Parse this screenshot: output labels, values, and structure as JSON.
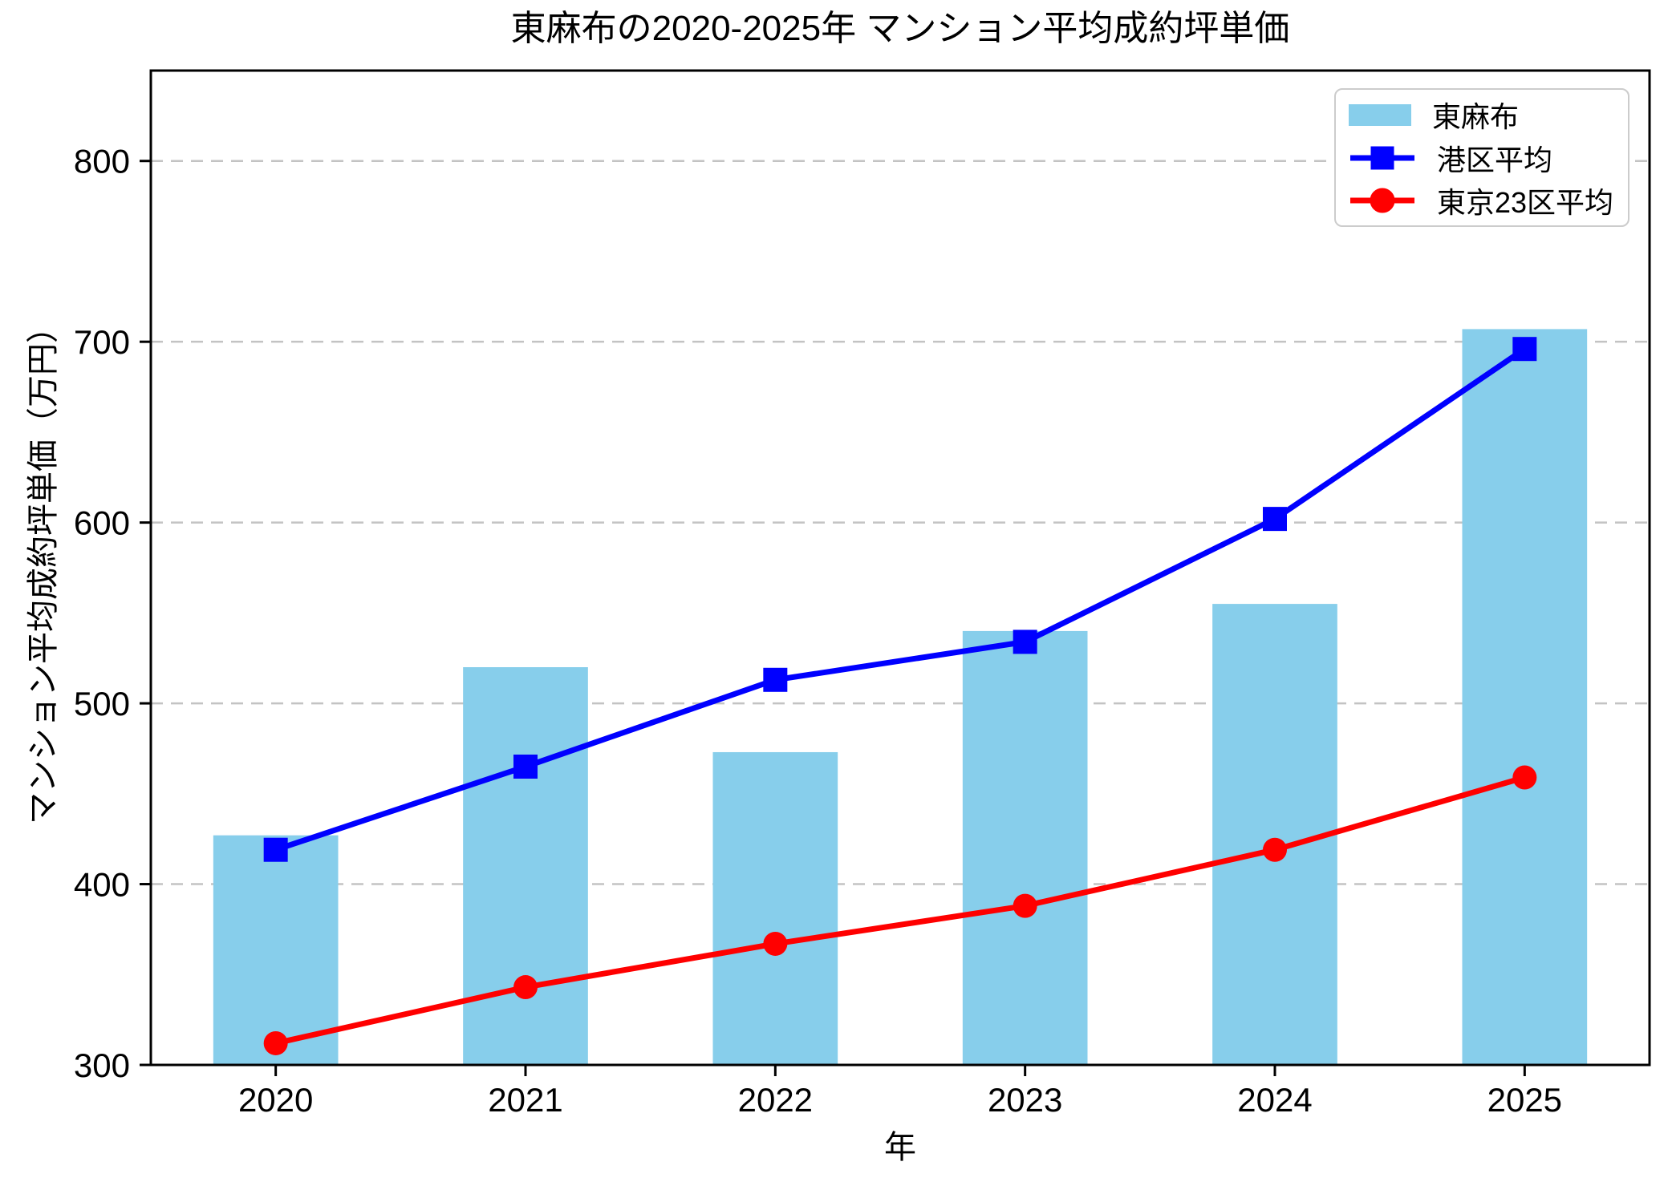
{
  "title": "東麻布の2020-2025年 マンション平均成約坪単価",
  "axes": {
    "xlabel": "年",
    "ylabel": "マンション平均成約坪単価（万円）",
    "yticks": [
      300,
      400,
      500,
      600,
      700,
      800
    ]
  },
  "legend": {
    "position": "upper right",
    "items": [
      {
        "label": "東麻布",
        "swatch": "bar",
        "color": "#87CEEB"
      },
      {
        "label": "港区平均",
        "swatch": "line-square",
        "color": "#0000FF"
      },
      {
        "label": "東京23区平均",
        "swatch": "line-circle",
        "color": "#FF0000"
      }
    ]
  },
  "chart_data": {
    "type": "bar",
    "title": "東麻布の2020-2025年 マンション平均成約坪単価",
    "xlabel": "年",
    "ylabel": "マンション平均成約坪単価（万円）",
    "categories": [
      "2020",
      "2021",
      "2022",
      "2023",
      "2024",
      "2025"
    ],
    "series": [
      {
        "name": "東麻布",
        "type": "bar",
        "color": "#87CEEB",
        "bar_width": 0.5,
        "values": [
          427,
          520,
          473,
          540,
          555,
          707
        ]
      },
      {
        "name": "港区平均",
        "type": "line",
        "marker": "square",
        "color": "#0000FF",
        "values": [
          419,
          465,
          513,
          534,
          602,
          696
        ]
      },
      {
        "name": "東京23区平均",
        "type": "line",
        "marker": "circle",
        "color": "#FF0000",
        "values": [
          312,
          343,
          367,
          388,
          419,
          459
        ]
      }
    ],
    "ylim": [
      300,
      850
    ],
    "yticks": [
      300,
      400,
      500,
      600,
      700,
      800
    ],
    "grid": true,
    "grid_axis": "y",
    "grid_style": "dashed",
    "grid_color": "#c3c3c3",
    "legend_position": "upper right"
  }
}
